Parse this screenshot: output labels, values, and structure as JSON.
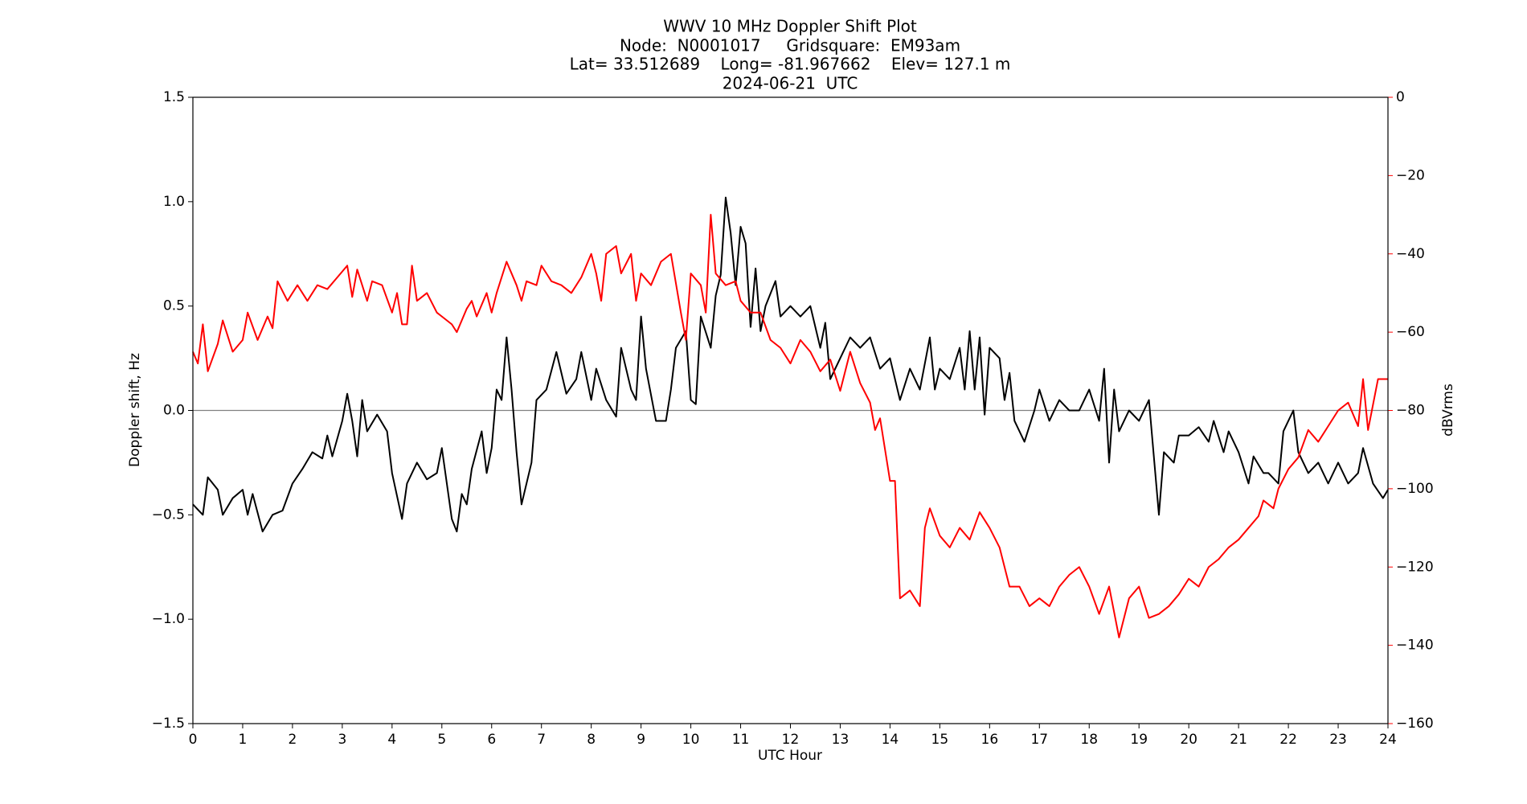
{
  "chart_data": {
    "type": "line",
    "title": [
      "WWV 10 MHz Doppler Shift Plot",
      "Node:  N0001017     Gridsquare:  EM93am",
      "Lat= 33.512689    Long= -81.967662    Elev= 127.1 m",
      "2024-06-21  UTC"
    ],
    "xlabel": "UTC Hour",
    "ylabel": "Doppler shift, Hz",
    "y2label": "dBVrms",
    "y2color": "#ff0000",
    "xlim": [
      0,
      24
    ],
    "xticks": [
      0,
      1,
      2,
      3,
      4,
      5,
      6,
      7,
      8,
      9,
      10,
      11,
      12,
      13,
      14,
      15,
      16,
      17,
      18,
      19,
      20,
      21,
      22,
      23,
      24
    ],
    "ylim": [
      -1.5,
      1.5
    ],
    "yticks": [
      {
        "value": -1.5,
        "label": "−1.5"
      },
      {
        "value": -1.0,
        "label": "−1.0"
      },
      {
        "value": -0.5,
        "label": "−0.5"
      },
      {
        "value": 0,
        "label": "0.0"
      },
      0.5,
      {
        "value": 1.0,
        "label": "1.0"
      },
      1.5
    ],
    "y2lim": [
      -160,
      0
    ],
    "y2ticks": [
      {
        "value": -160,
        "label": "−160"
      },
      {
        "value": -140,
        "label": "−140"
      },
      {
        "value": -120,
        "label": "−120"
      },
      {
        "value": -100,
        "label": "−100"
      },
      {
        "value": -80,
        "label": "−80"
      },
      {
        "value": -60,
        "label": "−60"
      },
      {
        "value": -40,
        "label": "−40"
      },
      {
        "value": -20,
        "label": "−20"
      },
      0
    ],
    "hline": 0,
    "hline_color": "#808080",
    "series": [
      {
        "color": "#000000",
        "x": [
          0,
          0.2,
          0.3,
          0.5,
          0.6,
          0.8,
          1.0,
          1.1,
          1.2,
          1.4,
          1.6,
          1.8,
          2.0,
          2.2,
          2.4,
          2.6,
          2.7,
          2.8,
          3.0,
          3.1,
          3.2,
          3.3,
          3.4,
          3.5,
          3.7,
          3.9,
          4.0,
          4.2,
          4.3,
          4.5,
          4.7,
          4.9,
          5.0,
          5.2,
          5.3,
          5.4,
          5.5,
          5.6,
          5.8,
          5.9,
          6.0,
          6.1,
          6.2,
          6.3,
          6.4,
          6.5,
          6.6,
          6.8,
          6.9,
          7.1,
          7.3,
          7.5,
          7.7,
          7.8,
          8.0,
          8.1,
          8.3,
          8.5,
          8.6,
          8.8,
          8.9,
          9.0,
          9.1,
          9.3,
          9.5,
          9.6,
          9.7,
          9.9,
          10.0,
          10.1,
          10.2,
          10.4,
          10.5,
          10.6,
          10.7,
          10.8,
          10.9,
          11.0,
          11.1,
          11.2,
          11.3,
          11.4,
          11.5,
          11.7,
          11.8,
          12.0,
          12.2,
          12.4,
          12.6,
          12.7,
          12.8,
          13.0,
          13.2,
          13.4,
          13.6,
          13.8,
          14.0,
          14.2,
          14.4,
          14.6,
          14.8,
          14.9,
          15.0,
          15.2,
          15.4,
          15.5,
          15.6,
          15.7,
          15.8,
          15.9,
          16.0,
          16.2,
          16.3,
          16.4,
          16.5,
          16.7,
          16.9,
          17.0,
          17.2,
          17.4,
          17.6,
          17.8,
          18.0,
          18.2,
          18.3,
          18.4,
          18.5,
          18.6,
          18.8,
          19.0,
          19.2,
          19.4,
          19.5,
          19.7,
          19.8,
          20.0,
          20.2,
          20.4,
          20.5,
          20.7,
          20.8,
          21.0,
          21.2,
          21.3,
          21.5,
          21.6,
          21.8,
          21.9,
          22.0,
          22.1,
          22.2,
          22.4,
          22.6,
          22.8,
          23.0,
          23.2,
          23.4,
          23.5,
          23.7,
          23.9,
          24.0
        ],
        "values": [
          -0.45,
          -0.5,
          -0.32,
          -0.38,
          -0.5,
          -0.42,
          -0.38,
          -0.5,
          -0.4,
          -0.58,
          -0.5,
          -0.48,
          -0.35,
          -0.28,
          -0.2,
          -0.23,
          -0.12,
          -0.22,
          -0.05,
          0.08,
          -0.05,
          -0.22,
          0.05,
          -0.1,
          -0.02,
          -0.1,
          -0.3,
          -0.52,
          -0.35,
          -0.25,
          -0.33,
          -0.3,
          -0.18,
          -0.52,
          -0.58,
          -0.4,
          -0.45,
          -0.28,
          -0.1,
          -0.3,
          -0.18,
          0.1,
          0.05,
          0.35,
          0.1,
          -0.2,
          -0.45,
          -0.25,
          0.05,
          0.1,
          0.28,
          0.08,
          0.15,
          0.28,
          0.05,
          0.2,
          0.05,
          -0.03,
          0.3,
          0.1,
          0.05,
          0.45,
          0.2,
          -0.05,
          -0.05,
          0.1,
          0.3,
          0.38,
          0.05,
          0.03,
          0.45,
          0.3,
          0.55,
          0.65,
          1.02,
          0.85,
          0.6,
          0.88,
          0.8,
          0.4,
          0.68,
          0.38,
          0.5,
          0.62,
          0.45,
          0.5,
          0.45,
          0.5,
          0.3,
          0.42,
          0.15,
          0.25,
          0.35,
          0.3,
          0.35,
          0.2,
          0.25,
          0.05,
          0.2,
          0.1,
          0.35,
          0.1,
          0.2,
          0.15,
          0.3,
          0.1,
          0.38,
          0.1,
          0.35,
          -0.02,
          0.3,
          0.25,
          0.05,
          0.18,
          -0.05,
          -0.15,
          0,
          0.1,
          -0.05,
          0.05,
          0,
          0,
          0.1,
          -0.05,
          0.2,
          -0.25,
          0.1,
          -0.1,
          0,
          -0.05,
          0.05,
          -0.5,
          -0.2,
          -0.25,
          -0.12,
          -0.12,
          -0.08,
          -0.15,
          -0.05,
          -0.2,
          -0.1,
          -0.2,
          -0.35,
          -0.22,
          -0.3,
          -0.3,
          -0.35,
          -0.1,
          -0.05,
          0.0,
          -0.2,
          -0.3,
          -0.25,
          -0.35,
          -0.25,
          -0.35,
          -0.3,
          -0.18,
          -0.35,
          -0.42,
          -0.38
        ]
      },
      {
        "color": "#ff0000",
        "axis": "y2",
        "x": [
          0,
          0.1,
          0.2,
          0.3,
          0.5,
          0.6,
          0.8,
          1.0,
          1.1,
          1.3,
          1.5,
          1.6,
          1.7,
          1.9,
          2.1,
          2.3,
          2.5,
          2.7,
          2.9,
          3.1,
          3.2,
          3.3,
          3.5,
          3.6,
          3.8,
          4.0,
          4.1,
          4.2,
          4.3,
          4.4,
          4.5,
          4.7,
          4.9,
          5.0,
          5.2,
          5.3,
          5.5,
          5.6,
          5.7,
          5.9,
          6.0,
          6.1,
          6.3,
          6.5,
          6.6,
          6.7,
          6.9,
          7.0,
          7.2,
          7.4,
          7.6,
          7.8,
          8.0,
          8.1,
          8.2,
          8.3,
          8.5,
          8.6,
          8.8,
          8.9,
          9.0,
          9.2,
          9.4,
          9.6,
          9.8,
          9.9,
          10.0,
          10.2,
          10.3,
          10.4,
          10.5,
          10.7,
          10.9,
          11.0,
          11.2,
          11.4,
          11.6,
          11.8,
          12.0,
          12.2,
          12.4,
          12.6,
          12.8,
          13.0,
          13.2,
          13.4,
          13.6,
          13.7,
          13.8,
          14.0,
          14.1,
          14.2,
          14.4,
          14.6,
          14.7,
          14.8,
          15.0,
          15.2,
          15.4,
          15.6,
          15.8,
          16.0,
          16.2,
          16.4,
          16.6,
          16.8,
          17.0,
          17.2,
          17.4,
          17.6,
          17.8,
          18.0,
          18.2,
          18.4,
          18.6,
          18.8,
          19.0,
          19.2,
          19.4,
          19.6,
          19.8,
          20.0,
          20.2,
          20.4,
          20.6,
          20.8,
          21.0,
          21.2,
          21.4,
          21.5,
          21.7,
          21.8,
          22.0,
          22.2,
          22.4,
          22.6,
          22.8,
          23.0,
          23.2,
          23.4,
          23.5,
          23.6,
          23.8,
          24.0
        ],
        "values": [
          -65,
          -68,
          -58,
          -70,
          -63,
          -57,
          -65,
          -62,
          -55,
          -62,
          -56,
          -59,
          -47,
          -52,
          -48,
          -52,
          -48,
          -49,
          -46,
          -43,
          -51,
          -44,
          -52,
          -47,
          -48,
          -55,
          -50,
          -58,
          -58,
          -43,
          -52,
          -50,
          -55,
          -56,
          -58,
          -60,
          -54,
          -52,
          -56,
          -50,
          -55,
          -50,
          -42,
          -48,
          -52,
          -47,
          -48,
          -43,
          -47,
          -48,
          -50,
          -46,
          -40,
          -45,
          -52,
          -40,
          -38,
          -45,
          -40,
          -52,
          -45,
          -48,
          -42,
          -40,
          -55,
          -62,
          -45,
          -48,
          -55,
          -30,
          -45,
          -48,
          -47,
          -52,
          -55,
          -55,
          -62,
          -64,
          -68,
          -62,
          -65,
          -70,
          -67,
          -75,
          -65,
          -73,
          -78,
          -85,
          -82,
          -98,
          -98,
          -128,
          -126,
          -130,
          -110,
          -105,
          -112,
          -115,
          -110,
          -113,
          -106,
          -110,
          -115,
          -125,
          -125,
          -130,
          -128,
          -130,
          -125,
          -122,
          -120,
          -125,
          -132,
          -125,
          -138,
          -128,
          -125,
          -133,
          -132,
          -130,
          -127,
          -123,
          -125,
          -120,
          -118,
          -115,
          -113,
          -110,
          -107,
          -103,
          -105,
          -100,
          -95,
          -92,
          -85,
          -88,
          -84,
          -80,
          -78,
          -84,
          -72,
          -85,
          -72,
          -72
        ]
      }
    ]
  }
}
